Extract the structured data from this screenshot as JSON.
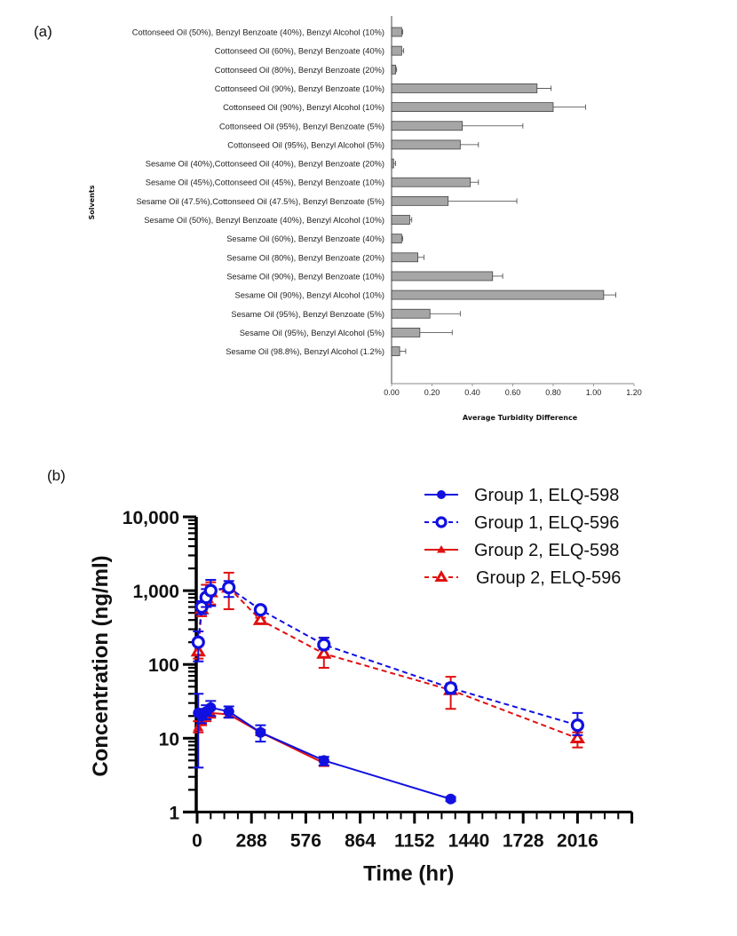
{
  "panels": {
    "a_label": "(a)",
    "b_label": "(b)"
  },
  "chart_data": [
    {
      "type": "bar",
      "orientation": "horizontal",
      "title": "",
      "xlabel": "Average Turbidity Difference",
      "ylabel": "Solvents",
      "xlim": [
        0,
        1.2
      ],
      "xticks": [
        "0.00",
        "0.20",
        "0.40",
        "0.60",
        "0.80",
        "1.00",
        "1.20"
      ],
      "xtick_values": [
        0,
        0.2,
        0.4,
        0.6,
        0.8,
        1.0,
        1.2
      ],
      "grid": false,
      "bar_color": "#a6a6a6",
      "categories": [
        "Cottonseed Oil (50%), Benzyl Benzoate (40%), Benzyl Alcohol (10%)",
        "Cottonseed Oil (60%), Benzyl Benzoate (40%)",
        "Cottonseed Oil (80%), Benzyl Benzoate (20%)",
        "Cottonseed Oil (90%), Benzyl Benzoate (10%)",
        "Cottonseed Oil (90%), Benzyl Alcohol (10%)",
        "Cottonseed Oil (95%), Benzyl Benzoate (5%)",
        "Cottonseed Oil (95%), Benzyl Alcohol (5%)",
        "Sesame Oil (40%),Cottonseed Oil  (40%), Benzyl Benzoate (20%)",
        "Sesame Oil (45%),Cottonseed Oil  (45%), Benzyl Benzoate (10%)",
        "Sesame Oil (47.5%),Cottonseed Oil  (47.5%), Benzyl Benzoate (5%)",
        "Sesame Oil (50%), Benzyl Benzoate  (40%), Benzyl Alcohol (10%)",
        "Sesame Oil (60%), Benzyl Benzoate (40%)",
        "Sesame Oil (80%), Benzyl Benzoate (20%)",
        "Sesame Oil (90%), Benzyl Benzoate (10%)",
        "Sesame Oil (90%), Benzyl Alcohol (10%)",
        "Sesame Oil (95%), Benzyl Benzoate (5%)",
        "Sesame Oil (95%), Benzyl Alcohol (5%)",
        "Sesame Oil (98.8%), Benzyl Alcohol (1.2%)"
      ],
      "values": [
        0.05,
        0.05,
        0.02,
        0.72,
        0.8,
        0.35,
        0.34,
        0.01,
        0.39,
        0.28,
        0.09,
        0.05,
        0.13,
        0.5,
        1.05,
        0.19,
        0.14,
        0.04
      ],
      "errors": [
        0.005,
        0.01,
        0.005,
        0.07,
        0.16,
        0.3,
        0.09,
        0.01,
        0.04,
        0.34,
        0.01,
        0.005,
        0.03,
        0.05,
        0.06,
        0.15,
        0.16,
        0.03
      ]
    },
    {
      "type": "line",
      "title": "",
      "xlabel": "Time (hr)",
      "ylabel": "Concentration (ng/ml)",
      "xlim": [
        0,
        2304
      ],
      "xticks": [
        "0",
        "288",
        "576",
        "864",
        "1152",
        "1440",
        "1728",
        "2016"
      ],
      "xtick_values": [
        0,
        288,
        576,
        864,
        1152,
        1440,
        1728,
        2016
      ],
      "yscale": "log",
      "ylim": [
        1,
        10000
      ],
      "yticks": [
        "1",
        "10",
        "100",
        "1,000",
        "10,000"
      ],
      "ytick_values": [
        1,
        10,
        100,
        1000,
        10000
      ],
      "grid": false,
      "legend_position": "top-right",
      "series": [
        {
          "name": "Group 1, ELQ-598",
          "color": "#1010e0",
          "marker": "filled-circle",
          "line": "solid",
          "x": [
            6,
            24,
            48,
            72,
            168,
            336,
            672,
            1344
          ],
          "y": [
            22,
            20,
            23,
            26,
            23,
            12,
            5,
            1.5
          ],
          "err_low": [
            4,
            16,
            18,
            20,
            19,
            9,
            4.3,
            1.4
          ],
          "err_high": [
            40,
            25,
            28,
            32,
            27,
            15,
            5.6,
            1.6
          ]
        },
        {
          "name": "Group 1, ELQ-596",
          "color": "#1010e0",
          "marker": "open-circle",
          "line": "dashed",
          "x": [
            6,
            24,
            48,
            72,
            168,
            336,
            672,
            1344,
            2016
          ],
          "y": [
            200,
            600,
            810,
            1000,
            1100,
            550,
            185,
            48,
            15
          ],
          "err_low": [
            110,
            480,
            600,
            620,
            820,
            500,
            160,
            40,
            11
          ],
          "err_high": [
            280,
            720,
            1050,
            1400,
            1350,
            600,
            230,
            55,
            22
          ]
        },
        {
          "name": "Group 2, ELQ-598",
          "color": "#e01010",
          "marker": "filled-triangle",
          "line": "solid",
          "x": [
            6,
            24,
            48,
            72,
            168,
            336,
            672
          ],
          "y": [
            14,
            17,
            20,
            22,
            21,
            12,
            4.6
          ],
          "err_low": [
            12,
            15,
            17,
            19,
            19,
            11,
            4.2
          ],
          "err_high": [
            17,
            20,
            23,
            25,
            23,
            13,
            5.0
          ]
        },
        {
          "name": "Group 2, ELQ-596",
          "color": "#e01010",
          "marker": "open-triangle",
          "line": "dashed",
          "x": [
            6,
            24,
            48,
            72,
            168,
            336,
            672,
            1344,
            2016
          ],
          "y": [
            150,
            560,
            800,
            950,
            1100,
            400,
            140,
            45,
            10
          ],
          "err_low": [
            120,
            450,
            600,
            650,
            560,
            370,
            90,
            25,
            7.5
          ],
          "err_high": [
            180,
            700,
            1200,
            1300,
            1750,
            430,
            230,
            68,
            12
          ]
        }
      ]
    }
  ]
}
